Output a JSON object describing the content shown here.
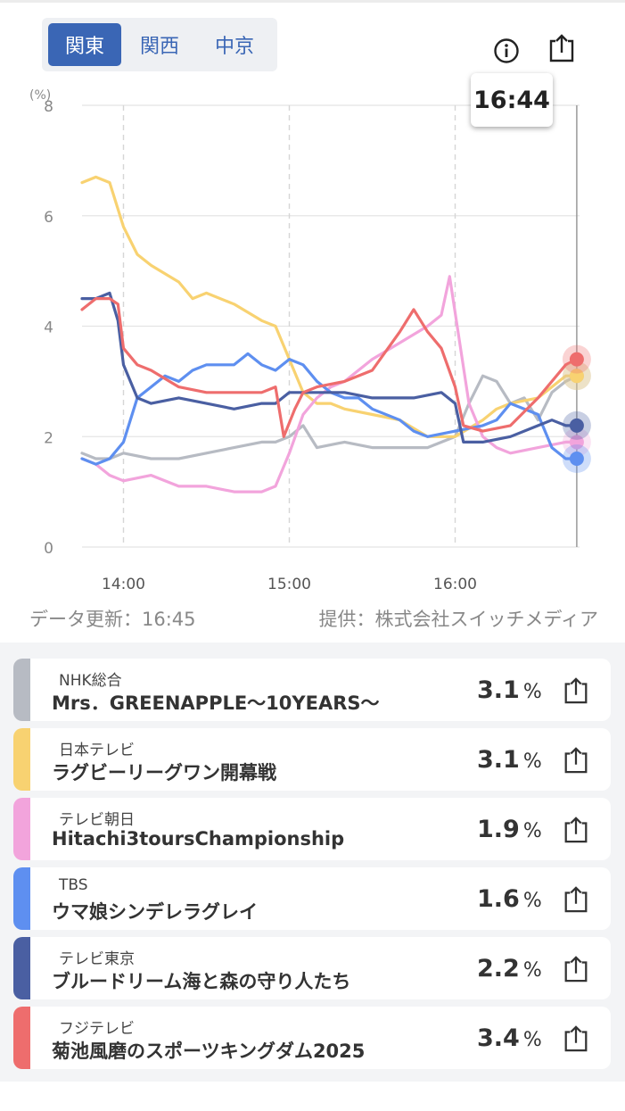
{
  "region_tabs": [
    {
      "label": "関東",
      "active": true
    },
    {
      "label": "関西",
      "active": false
    },
    {
      "label": "中京",
      "active": false
    }
  ],
  "icons": {
    "info": "info-icon",
    "share": "share-icon"
  },
  "tooltip_time": "16:44",
  "footer": {
    "updated": "データ更新：16:45",
    "provider": "提供：株式会社スイッチメディア"
  },
  "chart_data": {
    "type": "line",
    "yunit": "(%)",
    "ylim": [
      0,
      8
    ],
    "yticks": [
      0,
      2,
      4,
      6,
      8
    ],
    "xlim": [
      "13:45",
      "16:45"
    ],
    "xticks": [
      "14:00",
      "15:00",
      "16:00"
    ],
    "grid": true,
    "current_time": "16:44",
    "series": [
      {
        "name": "NHK総合",
        "color": "#b7bbc3",
        "points": [
          [
            "13:45",
            1.7
          ],
          [
            "13:50",
            1.6
          ],
          [
            "13:55",
            1.6
          ],
          [
            "14:00",
            1.7
          ],
          [
            "14:10",
            1.6
          ],
          [
            "14:20",
            1.6
          ],
          [
            "14:30",
            1.7
          ],
          [
            "14:40",
            1.8
          ],
          [
            "14:50",
            1.9
          ],
          [
            "14:55",
            1.9
          ],
          [
            "15:00",
            2.0
          ],
          [
            "15:05",
            2.2
          ],
          [
            "15:10",
            1.8
          ],
          [
            "15:20",
            1.9
          ],
          [
            "15:30",
            1.8
          ],
          [
            "15:40",
            1.8
          ],
          [
            "15:50",
            1.8
          ],
          [
            "16:00",
            2.0
          ],
          [
            "16:05",
            2.6
          ],
          [
            "16:10",
            3.1
          ],
          [
            "16:15",
            3.0
          ],
          [
            "16:20",
            2.6
          ],
          [
            "16:25",
            2.7
          ],
          [
            "16:30",
            2.3
          ],
          [
            "16:35",
            2.8
          ],
          [
            "16:40",
            3.0
          ],
          [
            "16:44",
            3.1
          ]
        ]
      },
      {
        "name": "日本テレビ",
        "color": "#f8d271",
        "points": [
          [
            "13:45",
            6.6
          ],
          [
            "13:50",
            6.7
          ],
          [
            "13:55",
            6.6
          ],
          [
            "14:00",
            5.8
          ],
          [
            "14:05",
            5.3
          ],
          [
            "14:10",
            5.1
          ],
          [
            "14:20",
            4.8
          ],
          [
            "14:25",
            4.5
          ],
          [
            "14:30",
            4.6
          ],
          [
            "14:40",
            4.4
          ],
          [
            "14:50",
            4.1
          ],
          [
            "14:55",
            4.0
          ],
          [
            "15:00",
            3.4
          ],
          [
            "15:05",
            2.8
          ],
          [
            "15:10",
            2.6
          ],
          [
            "15:15",
            2.6
          ],
          [
            "15:20",
            2.5
          ],
          [
            "15:30",
            2.4
          ],
          [
            "15:40",
            2.3
          ],
          [
            "15:50",
            2.0
          ],
          [
            "16:00",
            2.0
          ],
          [
            "16:10",
            2.3
          ],
          [
            "16:15",
            2.5
          ],
          [
            "16:20",
            2.6
          ],
          [
            "16:30",
            2.7
          ],
          [
            "16:40",
            3.1
          ],
          [
            "16:44",
            3.1
          ]
        ]
      },
      {
        "name": "テレビ朝日",
        "color": "#f2a4dc",
        "points": [
          [
            "13:45",
            1.6
          ],
          [
            "13:50",
            1.5
          ],
          [
            "13:55",
            1.3
          ],
          [
            "14:00",
            1.2
          ],
          [
            "14:10",
            1.3
          ],
          [
            "14:20",
            1.1
          ],
          [
            "14:30",
            1.1
          ],
          [
            "14:40",
            1.0
          ],
          [
            "14:50",
            1.0
          ],
          [
            "14:55",
            1.1
          ],
          [
            "15:00",
            1.7
          ],
          [
            "15:05",
            2.4
          ],
          [
            "15:10",
            2.7
          ],
          [
            "15:15",
            2.9
          ],
          [
            "15:20",
            3.0
          ],
          [
            "15:25",
            3.2
          ],
          [
            "15:30",
            3.4
          ],
          [
            "15:40",
            3.7
          ],
          [
            "15:50",
            4.0
          ],
          [
            "15:55",
            4.2
          ],
          [
            "15:58",
            4.9
          ],
          [
            "16:05",
            2.6
          ],
          [
            "16:10",
            2.0
          ],
          [
            "16:15",
            1.8
          ],
          [
            "16:20",
            1.7
          ],
          [
            "16:30",
            1.8
          ],
          [
            "16:40",
            1.9
          ],
          [
            "16:44",
            1.9
          ]
        ]
      },
      {
        "name": "TBS",
        "color": "#5e8ff0",
        "points": [
          [
            "13:45",
            1.6
          ],
          [
            "13:50",
            1.5
          ],
          [
            "13:55",
            1.6
          ],
          [
            "14:00",
            1.9
          ],
          [
            "14:05",
            2.7
          ],
          [
            "14:10",
            2.9
          ],
          [
            "14:15",
            3.1
          ],
          [
            "14:20",
            3.0
          ],
          [
            "14:25",
            3.2
          ],
          [
            "14:30",
            3.3
          ],
          [
            "14:40",
            3.3
          ],
          [
            "14:45",
            3.5
          ],
          [
            "14:50",
            3.3
          ],
          [
            "14:55",
            3.2
          ],
          [
            "15:00",
            3.4
          ],
          [
            "15:05",
            3.3
          ],
          [
            "15:10",
            3.0
          ],
          [
            "15:15",
            2.8
          ],
          [
            "15:20",
            2.7
          ],
          [
            "15:25",
            2.7
          ],
          [
            "15:30",
            2.5
          ],
          [
            "15:40",
            2.3
          ],
          [
            "15:45",
            2.1
          ],
          [
            "15:50",
            2.0
          ],
          [
            "16:00",
            2.1
          ],
          [
            "16:10",
            2.2
          ],
          [
            "16:15",
            2.3
          ],
          [
            "16:20",
            2.6
          ],
          [
            "16:30",
            2.4
          ],
          [
            "16:35",
            1.8
          ],
          [
            "16:40",
            1.6
          ],
          [
            "16:44",
            1.6
          ]
        ]
      },
      {
        "name": "テレビ東京",
        "color": "#4a5fa2",
        "points": [
          [
            "13:45",
            4.5
          ],
          [
            "13:50",
            4.5
          ],
          [
            "13:55",
            4.6
          ],
          [
            "13:58",
            4.1
          ],
          [
            "14:00",
            3.3
          ],
          [
            "14:05",
            2.7
          ],
          [
            "14:10",
            2.6
          ],
          [
            "14:20",
            2.7
          ],
          [
            "14:30",
            2.6
          ],
          [
            "14:40",
            2.5
          ],
          [
            "14:50",
            2.6
          ],
          [
            "14:55",
            2.6
          ],
          [
            "15:00",
            2.8
          ],
          [
            "15:10",
            2.8
          ],
          [
            "15:20",
            2.8
          ],
          [
            "15:30",
            2.7
          ],
          [
            "15:40",
            2.7
          ],
          [
            "15:45",
            2.7
          ],
          [
            "15:55",
            2.8
          ],
          [
            "16:00",
            2.6
          ],
          [
            "16:03",
            1.9
          ],
          [
            "16:10",
            1.9
          ],
          [
            "16:20",
            2.0
          ],
          [
            "16:30",
            2.2
          ],
          [
            "16:35",
            2.3
          ],
          [
            "16:40",
            2.2
          ],
          [
            "16:44",
            2.2
          ]
        ]
      },
      {
        "name": "フジテレビ",
        "color": "#ee6d6d",
        "points": [
          [
            "13:45",
            4.3
          ],
          [
            "13:50",
            4.5
          ],
          [
            "13:55",
            4.5
          ],
          [
            "13:58",
            4.4
          ],
          [
            "14:00",
            3.6
          ],
          [
            "14:05",
            3.3
          ],
          [
            "14:10",
            3.2
          ],
          [
            "14:20",
            2.9
          ],
          [
            "14:30",
            2.8
          ],
          [
            "14:40",
            2.8
          ],
          [
            "14:50",
            2.8
          ],
          [
            "14:55",
            2.9
          ],
          [
            "14:58",
            2.0
          ],
          [
            "15:02",
            2.5
          ],
          [
            "15:05",
            2.8
          ],
          [
            "15:10",
            2.9
          ],
          [
            "15:20",
            3.0
          ],
          [
            "15:30",
            3.2
          ],
          [
            "15:40",
            3.9
          ],
          [
            "15:45",
            4.3
          ],
          [
            "15:50",
            3.9
          ],
          [
            "15:55",
            3.6
          ],
          [
            "16:00",
            2.9
          ],
          [
            "16:03",
            2.2
          ],
          [
            "16:10",
            2.1
          ],
          [
            "16:20",
            2.2
          ],
          [
            "16:30",
            2.7
          ],
          [
            "16:40",
            3.3
          ],
          [
            "16:44",
            3.4
          ]
        ]
      }
    ]
  },
  "channels": [
    {
      "channel": "NHK総合",
      "program": "Mrs．GREENAPPLE～10YEARS～",
      "value": "3.1",
      "unit": "%",
      "color": "#b7bbc3"
    },
    {
      "channel": "日本テレビ",
      "program": "ラグビーリーグワン開幕戦",
      "value": "3.1",
      "unit": "%",
      "color": "#f8d271"
    },
    {
      "channel": "テレビ朝日",
      "program": "Hitachi3toursChampionship",
      "value": "1.9",
      "unit": "%",
      "color": "#f2a4dc"
    },
    {
      "channel": "TBS",
      "program": "ウマ娘シンデレラグレイ",
      "value": "1.6",
      "unit": "%",
      "color": "#5e8ff0"
    },
    {
      "channel": "テレビ東京",
      "program": "ブルードリーム海と森の守り人たち",
      "value": "2.2",
      "unit": "%",
      "color": "#4a5fa2"
    },
    {
      "channel": "フジテレビ",
      "program": "菊池風磨のスポーツキングダム2025",
      "value": "3.4",
      "unit": "%",
      "color": "#ee6d6d"
    }
  ]
}
